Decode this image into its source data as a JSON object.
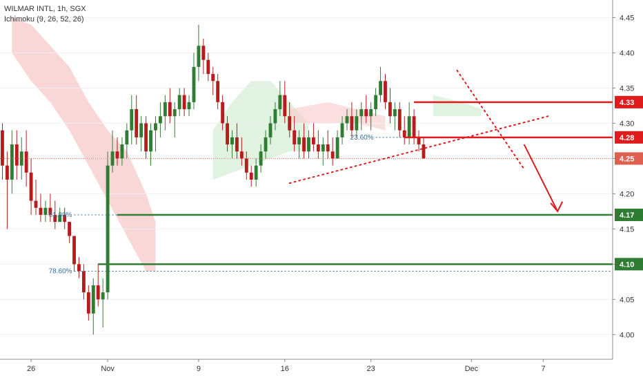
{
  "header": {
    "symbol_line": "WILMAR INTL, 1h, SGX",
    "indicator_line": "Ichimoku (9, 26, 52, 26)"
  },
  "colors": {
    "up": "#2e7d32",
    "down": "#b71c1c",
    "cloud_bear": "#f8c9c9",
    "cloud_bull": "#d8efd8",
    "red_line": "#e01b1b",
    "green_line": "#2e7d32",
    "fib_blue": "#2f6e9c",
    "axis_text": "#333333",
    "price_label_red": "#e01b1b",
    "price_label_current": "#e06050",
    "price_label_green": "#2e7d32"
  },
  "chart_data": {
    "type": "candlestick",
    "title": "WILMAR INTL, 1h, SGX",
    "indicator": "Ichimoku (9, 26, 52, 26)",
    "x_ticks": [
      {
        "label": "26",
        "index": 6
      },
      {
        "label": "Nov",
        "index": 22
      },
      {
        "label": "9",
        "index": 41
      },
      {
        "label": "16",
        "index": 59
      },
      {
        "label": "23",
        "index": 77
      },
      {
        "label": "Dec",
        "index": 98
      },
      {
        "label": "7",
        "index": 113
      }
    ],
    "y_ticks": [
      4.0,
      4.05,
      4.1,
      4.15,
      4.2,
      4.25,
      4.3,
      4.35,
      4.4,
      4.45
    ],
    "ylim": [
      3.965,
      4.475
    ],
    "x_count": 128,
    "candles": [
      [
        4.29,
        4.3,
        4.22,
        4.24
      ],
      [
        4.24,
        4.26,
        4.15,
        4.22
      ],
      [
        4.22,
        4.29,
        4.2,
        4.27
      ],
      [
        4.27,
        4.29,
        4.22,
        4.24
      ],
      [
        4.24,
        4.28,
        4.22,
        4.26
      ],
      [
        4.26,
        4.29,
        4.21,
        4.23
      ],
      [
        4.23,
        4.25,
        4.17,
        4.19
      ],
      [
        4.19,
        4.22,
        4.17,
        4.18
      ],
      [
        4.18,
        4.2,
        4.16,
        4.17
      ],
      [
        4.17,
        4.19,
        4.16,
        4.18
      ],
      [
        4.18,
        4.2,
        4.16,
        4.17
      ],
      [
        4.17,
        4.19,
        4.15,
        4.16
      ],
      [
        4.16,
        4.18,
        4.16,
        4.17
      ],
      [
        4.17,
        4.18,
        4.15,
        4.16
      ],
      [
        4.16,
        4.16,
        4.13,
        4.14
      ],
      [
        4.14,
        4.14,
        4.09,
        4.1
      ],
      [
        4.1,
        4.11,
        4.08,
        4.09
      ],
      [
        4.09,
        4.1,
        4.05,
        4.06
      ],
      [
        4.06,
        4.07,
        4.02,
        4.03
      ],
      [
        4.03,
        4.08,
        4.0,
        4.07
      ],
      [
        4.07,
        4.1,
        4.04,
        4.05
      ],
      [
        4.05,
        4.08,
        4.01,
        4.06
      ],
      [
        4.06,
        4.26,
        4.05,
        4.24
      ],
      [
        4.24,
        4.29,
        4.23,
        4.26
      ],
      [
        4.26,
        4.28,
        4.24,
        4.25
      ],
      [
        4.25,
        4.28,
        4.24,
        4.27
      ],
      [
        4.27,
        4.3,
        4.25,
        4.29
      ],
      [
        4.29,
        4.34,
        4.27,
        4.32
      ],
      [
        4.32,
        4.34,
        4.27,
        4.28
      ],
      [
        4.28,
        4.31,
        4.26,
        4.3
      ],
      [
        4.3,
        4.31,
        4.25,
        4.26
      ],
      [
        4.26,
        4.3,
        4.24,
        4.29
      ],
      [
        4.29,
        4.31,
        4.26,
        4.3
      ],
      [
        4.3,
        4.33,
        4.28,
        4.31
      ],
      [
        4.31,
        4.34,
        4.29,
        4.33
      ],
      [
        4.33,
        4.35,
        4.3,
        4.31
      ],
      [
        4.31,
        4.33,
        4.28,
        4.32
      ],
      [
        4.32,
        4.35,
        4.31,
        4.34
      ],
      [
        4.34,
        4.35,
        4.31,
        4.32
      ],
      [
        4.32,
        4.34,
        4.31,
        4.33
      ],
      [
        4.33,
        4.4,
        4.32,
        4.38
      ],
      [
        4.38,
        4.44,
        4.36,
        4.41
      ],
      [
        4.41,
        4.42,
        4.37,
        4.39
      ],
      [
        4.39,
        4.4,
        4.36,
        4.37
      ],
      [
        4.37,
        4.38,
        4.34,
        4.36
      ],
      [
        4.36,
        4.37,
        4.32,
        4.33
      ],
      [
        4.33,
        4.34,
        4.29,
        4.3
      ],
      [
        4.3,
        4.31,
        4.26,
        4.27
      ],
      [
        4.27,
        4.29,
        4.25,
        4.28
      ],
      [
        4.28,
        4.3,
        4.25,
        4.26
      ],
      [
        4.26,
        4.28,
        4.24,
        4.25
      ],
      [
        4.25,
        4.26,
        4.22,
        4.23
      ],
      [
        4.23,
        4.24,
        4.21,
        4.22
      ],
      [
        4.22,
        4.25,
        4.21,
        4.24
      ],
      [
        4.24,
        4.27,
        4.23,
        4.26
      ],
      [
        4.26,
        4.29,
        4.25,
        4.28
      ],
      [
        4.28,
        4.31,
        4.27,
        4.3
      ],
      [
        4.3,
        4.33,
        4.29,
        4.32
      ],
      [
        4.32,
        4.36,
        4.31,
        4.34
      ],
      [
        4.34,
        4.36,
        4.3,
        4.31
      ],
      [
        4.31,
        4.33,
        4.28,
        4.29
      ],
      [
        4.29,
        4.31,
        4.26,
        4.27
      ],
      [
        4.27,
        4.29,
        4.25,
        4.28
      ],
      [
        4.28,
        4.3,
        4.25,
        4.26
      ],
      [
        4.26,
        4.29,
        4.25,
        4.28
      ],
      [
        4.28,
        4.3,
        4.26,
        4.27
      ],
      [
        4.27,
        4.29,
        4.25,
        4.26
      ],
      [
        4.26,
        4.28,
        4.24,
        4.27
      ],
      [
        4.27,
        4.29,
        4.25,
        4.26
      ],
      [
        4.26,
        4.28,
        4.24,
        4.25
      ],
      [
        4.25,
        4.29,
        4.25,
        4.28
      ],
      [
        4.28,
        4.31,
        4.27,
        4.3
      ],
      [
        4.3,
        4.32,
        4.29,
        4.31
      ],
      [
        4.31,
        4.33,
        4.28,
        4.29
      ],
      [
        4.29,
        4.32,
        4.28,
        4.31
      ],
      [
        4.31,
        4.33,
        4.29,
        4.32
      ],
      [
        4.32,
        4.34,
        4.3,
        4.31
      ],
      [
        4.31,
        4.33,
        4.29,
        4.32
      ],
      [
        4.32,
        4.35,
        4.31,
        4.34
      ],
      [
        4.34,
        4.38,
        4.33,
        4.36
      ],
      [
        4.36,
        4.37,
        4.32,
        4.33
      ],
      [
        4.33,
        4.35,
        4.3,
        4.31
      ],
      [
        4.31,
        4.33,
        4.29,
        4.32
      ],
      [
        4.32,
        4.33,
        4.28,
        4.29
      ],
      [
        4.29,
        4.31,
        4.27,
        4.28
      ],
      [
        4.28,
        4.33,
        4.27,
        4.31
      ],
      [
        4.31,
        4.32,
        4.27,
        4.28
      ],
      [
        4.28,
        4.29,
        4.26,
        4.27
      ],
      [
        4.27,
        4.28,
        4.25,
        4.25
      ]
    ],
    "horizontal_levels": [
      {
        "price": 4.33,
        "label": "4.33",
        "kind": "resistance",
        "start_index": 86
      },
      {
        "price": 4.28,
        "label": "4.28",
        "kind": "resistance",
        "start_index": 84
      },
      {
        "price": 4.17,
        "label": "4.17",
        "kind": "support",
        "start_index": 24
      },
      {
        "price": 4.1,
        "label": "4.10",
        "kind": "support",
        "start_index": 20
      }
    ],
    "current_price": {
      "price": 4.25,
      "label": "4.25"
    },
    "fib_levels": [
      {
        "label": "23.60%",
        "price": 4.28,
        "start_index": 78
      },
      {
        "label": "61.80%",
        "price": 4.17,
        "start_index": 15
      },
      {
        "label": "78.60%",
        "price": 4.09,
        "start_index": 15
      }
    ]
  }
}
